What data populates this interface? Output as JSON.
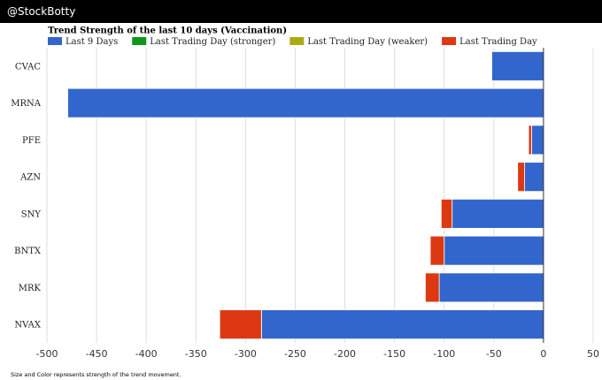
{
  "header": {
    "brand": "@StockBotty"
  },
  "footnote": "Size and Color represents strength of the trend movement.",
  "colors": {
    "last9": "#3366CC",
    "stronger": "#109618",
    "weaker": "#AAAA11",
    "last_day": "#DC3912"
  },
  "chart_data": {
    "type": "bar",
    "orientation": "horizontal",
    "stacked": true,
    "title": "Trend Strength of the last 10 days (Vaccination)",
    "legend": [
      "Last 9 Days",
      "Last Trading Day (stronger)",
      "Last Trading Day (weaker)",
      "Last Trading Day"
    ],
    "legend_position": "top-left",
    "categories": [
      "CVAC",
      "MRNA",
      "PFE",
      "AZN",
      "SNY",
      "BNTX",
      "MRK",
      "NVAX"
    ],
    "series": [
      {
        "name": "Last 9 Days",
        "values": [
          -52,
          -479,
          -12,
          -19,
          -92,
          -100,
          -105,
          -284
        ]
      },
      {
        "name": "Last Trading Day (stronger)",
        "values": [
          0,
          0,
          0,
          0,
          0,
          0,
          0,
          0
        ]
      },
      {
        "name": "Last Trading Day (weaker)",
        "values": [
          0,
          0,
          0,
          0,
          0,
          0,
          0,
          0
        ]
      },
      {
        "name": "Last Trading Day",
        "values": [
          0,
          0,
          -3,
          -7,
          -11,
          -14,
          -14,
          -42
        ]
      }
    ],
    "xlim": [
      -500,
      50
    ],
    "xticks": [
      -500,
      -450,
      -400,
      -350,
      -300,
      -250,
      -200,
      -150,
      -100,
      -50,
      0,
      50
    ],
    "grid": true
  }
}
